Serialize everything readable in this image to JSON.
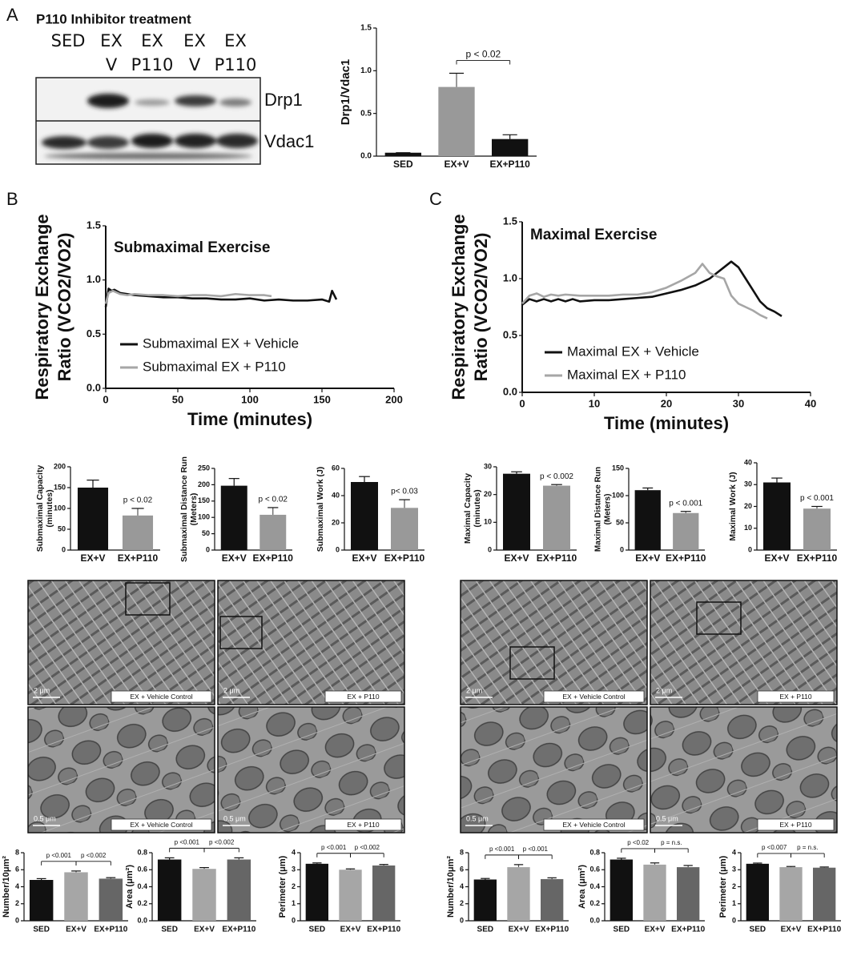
{
  "figure": {
    "panels": [
      "A",
      "B",
      "C"
    ],
    "blot": {
      "title": "P110 Inhibitor treatment",
      "lanes": [
        {
          "top": "SED"
        },
        {
          "top": "EX",
          "bottom": "V"
        },
        {
          "top": "EX",
          "bottom": "P110"
        },
        {
          "top": "EX",
          "bottom": "V"
        },
        {
          "top": "EX",
          "bottom": "P110"
        }
      ],
      "bands": [
        "Drp1",
        "Vdac1"
      ]
    },
    "micrographs": [
      {
        "caption": "EX + Vehicle Control",
        "scale": "2 μm"
      },
      {
        "caption": "EX + P110",
        "scale": "2 μm"
      },
      {
        "caption": "EX + Vehicle Control",
        "scale": "0.5 μm"
      },
      {
        "caption": "EX + P110",
        "scale": "0.5 μm"
      },
      {
        "caption": "EX + Vehicle Control",
        "scale": "2 μm"
      },
      {
        "caption": "EX + P110",
        "scale": "2 μm"
      },
      {
        "caption": "EX + Vehicle Control",
        "scale": "0.5 μm"
      },
      {
        "caption": "EX + P110",
        "scale": "0.5 μm"
      }
    ]
  },
  "chart_data": [
    {
      "type": "bar",
      "ylabel": [
        "Drp1/Vdac1"
      ],
      "categories": [
        "SED",
        "EX+V",
        "EX+P110"
      ],
      "values": [
        0.04,
        0.81,
        0.2
      ],
      "errors": [
        0,
        0.16,
        0.05
      ],
      "colors": [
        "#111111",
        "#999999",
        "#111111"
      ],
      "ylim": [
        0,
        1.5
      ],
      "yticks": [
        {
          "value": 0,
          "label": "0.0"
        },
        0.5,
        {
          "value": 1,
          "label": "1.0"
        },
        1.5
      ],
      "annotations": [
        "p < 0.02"
      ]
    },
    {
      "type": "line",
      "title": "Submaximal Exercise",
      "xlabel": "Time (minutes)",
      "ylabel": [
        "Respiratory Exchange",
        "Ratio (VCO2/VO2)"
      ],
      "xlim": [
        0,
        200
      ],
      "xticks": [
        0,
        50,
        100,
        150,
        200
      ],
      "ylim": [
        0,
        1.5
      ],
      "yticks": [
        {
          "value": 0,
          "label": "0.0"
        },
        0.5,
        {
          "value": 1,
          "label": "1.0"
        },
        1.5
      ],
      "series": [
        {
          "name": "Submaximal EX + Vehicle",
          "color": "#111111",
          "x": [
            0,
            2,
            4,
            6,
            10,
            15,
            20,
            30,
            40,
            50,
            60,
            70,
            80,
            90,
            100,
            110,
            120,
            130,
            140,
            150,
            155,
            157,
            160
          ],
          "values": [
            0.75,
            0.92,
            0.9,
            0.91,
            0.88,
            0.87,
            0.86,
            0.85,
            0.84,
            0.84,
            0.83,
            0.83,
            0.82,
            0.82,
            0.83,
            0.81,
            0.82,
            0.81,
            0.81,
            0.82,
            0.8,
            0.9,
            0.82
          ]
        },
        {
          "name": "Submaximal EX + P110",
          "color": "#a6a6a6",
          "x": [
            0,
            2,
            5,
            10,
            15,
            20,
            30,
            40,
            50,
            60,
            70,
            80,
            90,
            100,
            110,
            115
          ],
          "values": [
            0.78,
            0.88,
            0.9,
            0.87,
            0.86,
            0.87,
            0.86,
            0.86,
            0.85,
            0.86,
            0.86,
            0.85,
            0.87,
            0.86,
            0.86,
            0.85
          ]
        }
      ]
    },
    {
      "type": "line",
      "title": "Maximal Exercise",
      "xlabel": "Time (minutes)",
      "ylabel": [
        "Respiratory Exchange",
        "Ratio (VCO2/VO2)"
      ],
      "xlim": [
        0,
        40
      ],
      "xticks": [
        0,
        10,
        20,
        30,
        40
      ],
      "ylim": [
        0,
        1.5
      ],
      "yticks": [
        {
          "value": 0,
          "label": "0.0"
        },
        0.5,
        {
          "value": 1,
          "label": "1.0"
        },
        1.5
      ],
      "series": [
        {
          "name": "Maximal EX + Vehicle",
          "color": "#111111",
          "x": [
            0,
            1,
            2,
            3,
            4,
            5,
            6,
            7,
            8,
            10,
            12,
            14,
            16,
            18,
            20,
            22,
            24,
            26,
            27,
            28,
            29,
            30,
            31,
            32,
            33,
            34,
            35,
            36
          ],
          "values": [
            0.77,
            0.82,
            0.8,
            0.82,
            0.8,
            0.82,
            0.8,
            0.82,
            0.8,
            0.81,
            0.81,
            0.82,
            0.83,
            0.84,
            0.87,
            0.9,
            0.94,
            1.0,
            1.05,
            1.1,
            1.15,
            1.1,
            1.0,
            0.9,
            0.8,
            0.74,
            0.71,
            0.67
          ]
        },
        {
          "name": "Maximal EX + P110",
          "color": "#a6a6a6",
          "x": [
            0,
            1,
            2,
            3,
            4,
            5,
            6,
            8,
            10,
            12,
            14,
            16,
            18,
            20,
            22,
            24,
            25,
            26,
            27,
            28,
            29,
            30,
            31,
            32,
            33,
            34
          ],
          "values": [
            0.78,
            0.85,
            0.87,
            0.84,
            0.86,
            0.85,
            0.86,
            0.85,
            0.85,
            0.85,
            0.86,
            0.86,
            0.88,
            0.92,
            0.98,
            1.05,
            1.13,
            1.05,
            1.02,
            1.0,
            0.85,
            0.78,
            0.75,
            0.72,
            0.68,
            0.65
          ]
        }
      ]
    },
    {
      "type": "bar",
      "ylabel": [
        "Submaximal Capacity",
        "(minutes)"
      ],
      "categories": [
        "EX+V",
        "EX+P110"
      ],
      "values": [
        150,
        83
      ],
      "errors": [
        18,
        17
      ],
      "colors": [
        "#111111",
        "#999999"
      ],
      "ylim": [
        0,
        200
      ],
      "yticks": [
        0,
        50,
        100,
        150,
        200
      ],
      "annotations": [
        "p < 0.02"
      ]
    },
    {
      "type": "bar",
      "ylabel": [
        "Submaximal Distance Run",
        "(Meters)"
      ],
      "categories": [
        "EX+V",
        "EX+P110"
      ],
      "values": [
        197,
        108
      ],
      "errors": [
        22,
        22
      ],
      "colors": [
        "#111111",
        "#999999"
      ],
      "ylim": [
        0,
        250
      ],
      "yticks": [
        0,
        50,
        100,
        150,
        200,
        250
      ],
      "annotations": [
        "p < 0.02"
      ]
    },
    {
      "type": "bar",
      "ylabel": [
        "Submaximal Work (J)"
      ],
      "categories": [
        "EX+V",
        "EX+P110"
      ],
      "values": [
        50,
        31
      ],
      "errors": [
        4,
        6
      ],
      "colors": [
        "#111111",
        "#999999"
      ],
      "ylim": [
        0,
        60
      ],
      "yticks": [
        0,
        20,
        40,
        60
      ],
      "annotations": [
        "p< 0.03"
      ]
    },
    {
      "type": "bar",
      "ylabel": [
        "Maximal Capacity",
        "(minutes)"
      ],
      "categories": [
        "EX+V",
        "EX+P110"
      ],
      "values": [
        27.5,
        23.2
      ],
      "errors": [
        0.7,
        0.4
      ],
      "colors": [
        "#111111",
        "#999999"
      ],
      "ylim": [
        0,
        30
      ],
      "yticks": [
        0,
        10,
        20,
        30
      ],
      "annotations": [
        "p < 0.002"
      ]
    },
    {
      "type": "bar",
      "ylabel": [
        "Maximal Distance Run",
        "(Meters)"
      ],
      "categories": [
        "EX+V",
        "EX+P110"
      ],
      "values": [
        110,
        68
      ],
      "errors": [
        4,
        3
      ],
      "colors": [
        "#111111",
        "#999999"
      ],
      "ylim": [
        0,
        150
      ],
      "yticks": [
        0,
        50,
        100,
        150
      ],
      "annotations": [
        "p < 0.001"
      ]
    },
    {
      "type": "bar",
      "ylabel": [
        "Maximal Work (J)"
      ],
      "categories": [
        "EX+V",
        "EX+P110"
      ],
      "values": [
        31,
        19
      ],
      "errors": [
        2,
        1
      ],
      "colors": [
        "#111111",
        "#999999"
      ],
      "ylim": [
        0,
        40
      ],
      "yticks": [
        0,
        10,
        20,
        30,
        40
      ],
      "annotations": [
        "p < 0.001"
      ]
    },
    {
      "type": "bar",
      "ylabel": [
        "Number/10μm²"
      ],
      "categories": [
        "SED",
        "EX+V",
        "EX+P110"
      ],
      "values": [
        4.8,
        5.7,
        4.95
      ],
      "errors": [
        0.15,
        0.15,
        0.12
      ],
      "colors": [
        "#111111",
        "#a6a6a6",
        "#666666"
      ],
      "ylim": [
        0,
        8
      ],
      "yticks": [
        0,
        2,
        4,
        6,
        8
      ],
      "annotations": [
        "p <0.001",
        "p <0.002"
      ]
    },
    {
      "type": "bar",
      "ylabel": [
        "Area (μm²)"
      ],
      "categories": [
        "SED",
        "EX+V",
        "EX+P110"
      ],
      "values": [
        0.72,
        0.61,
        0.72
      ],
      "errors": [
        0.02,
        0.015,
        0.02
      ],
      "colors": [
        "#111111",
        "#a6a6a6",
        "#666666"
      ],
      "ylim": [
        0,
        0.8
      ],
      "yticks": [
        {
          "value": 0,
          "label": "0.0"
        },
        0.2,
        0.4,
        0.6,
        0.8
      ],
      "annotations": [
        "p <0.001",
        "p <0.002"
      ]
    },
    {
      "type": "bar",
      "ylabel": [
        "Perimeter (μm)"
      ],
      "categories": [
        "SED",
        "EX+V",
        "EX+P110"
      ],
      "values": [
        3.35,
        3.0,
        3.25
      ],
      "errors": [
        0.05,
        0.05,
        0.06
      ],
      "colors": [
        "#111111",
        "#a6a6a6",
        "#666666"
      ],
      "ylim": [
        0,
        4
      ],
      "yticks": [
        0,
        1,
        2,
        3,
        4
      ],
      "annotations": [
        "p <0.001",
        "p <0.002"
      ]
    },
    {
      "type": "bar",
      "ylabel": [
        "Number/10μm²"
      ],
      "categories": [
        "SED",
        "EX+V",
        "EX+P110"
      ],
      "values": [
        4.85,
        6.3,
        4.9
      ],
      "errors": [
        0.12,
        0.3,
        0.15
      ],
      "colors": [
        "#111111",
        "#a6a6a6",
        "#666666"
      ],
      "ylim": [
        0,
        8
      ],
      "yticks": [
        0,
        2,
        4,
        6,
        8
      ],
      "annotations": [
        "p <0.001",
        "p <0.001"
      ]
    },
    {
      "type": "bar",
      "ylabel": [
        "Area (μm²)"
      ],
      "categories": [
        "SED",
        "EX+V",
        "EX+P110"
      ],
      "values": [
        0.72,
        0.66,
        0.63
      ],
      "errors": [
        0.015,
        0.02,
        0.02
      ],
      "colors": [
        "#111111",
        "#a6a6a6",
        "#666666"
      ],
      "ylim": [
        0,
        0.8
      ],
      "yticks": [
        {
          "value": 0,
          "label": "0.0"
        },
        0.2,
        0.4,
        0.6,
        0.8
      ],
      "annotations": [
        "p <0.02",
        "p = n.s."
      ]
    },
    {
      "type": "bar",
      "ylabel": [
        "Perimeter (μm)"
      ],
      "categories": [
        "SED",
        "EX+V",
        "EX+P110"
      ],
      "values": [
        3.35,
        3.15,
        3.12
      ],
      "errors": [
        0.04,
        0.04,
        0.04
      ],
      "colors": [
        "#111111",
        "#a6a6a6",
        "#666666"
      ],
      "ylim": [
        0,
        4
      ],
      "yticks": [
        0,
        1,
        2,
        3,
        4
      ],
      "annotations": [
        "p <0.007",
        "p = n.s."
      ]
    }
  ]
}
